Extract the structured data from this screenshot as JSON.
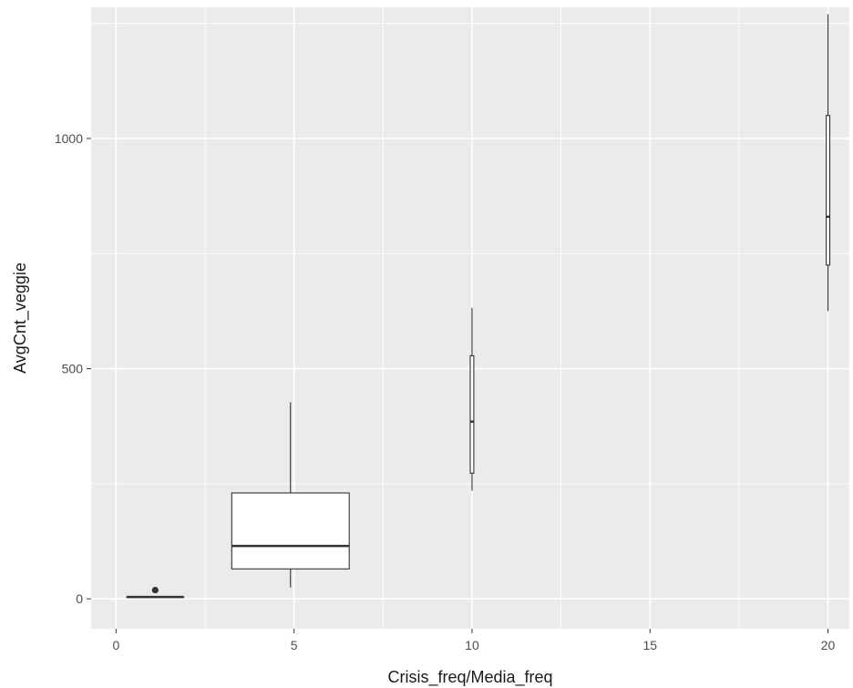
{
  "chart_data": {
    "type": "boxplot",
    "xlabel": "Crisis_freq/Media_freq",
    "ylabel": "AvgCnt_veggie",
    "xlim": [
      -0.7,
      20.6
    ],
    "ylim": [
      -65,
      1285
    ],
    "x_ticks": [
      0,
      5,
      10,
      15,
      20
    ],
    "y_ticks": [
      0,
      500,
      1000
    ],
    "grid": true,
    "colors": {
      "panel": "#ebebeb",
      "grid": "#ffffff",
      "box_fill": "#ffffff",
      "box_stroke": "#333333"
    },
    "boxes": [
      {
        "x": 1.1,
        "width": 1.6,
        "whisker_low": 4,
        "q1": 4,
        "median": 4,
        "q3": 4,
        "whisker_high": 4,
        "outliers": [
          19
        ]
      },
      {
        "x": 4.9,
        "width": 3.3,
        "whisker_low": 25,
        "q1": 65,
        "median": 115,
        "q3": 230,
        "whisker_high": 427,
        "outliers": []
      },
      {
        "x": 10.0,
        "width": 0.1,
        "whisker_low": 235,
        "q1": 273,
        "median": 385,
        "q3": 528,
        "whisker_high": 632,
        "outliers": []
      },
      {
        "x": 20.0,
        "width": 0.1,
        "whisker_low": 625,
        "q1": 725,
        "median": 830,
        "q3": 1050,
        "whisker_high": 1270,
        "outliers": []
      }
    ]
  }
}
